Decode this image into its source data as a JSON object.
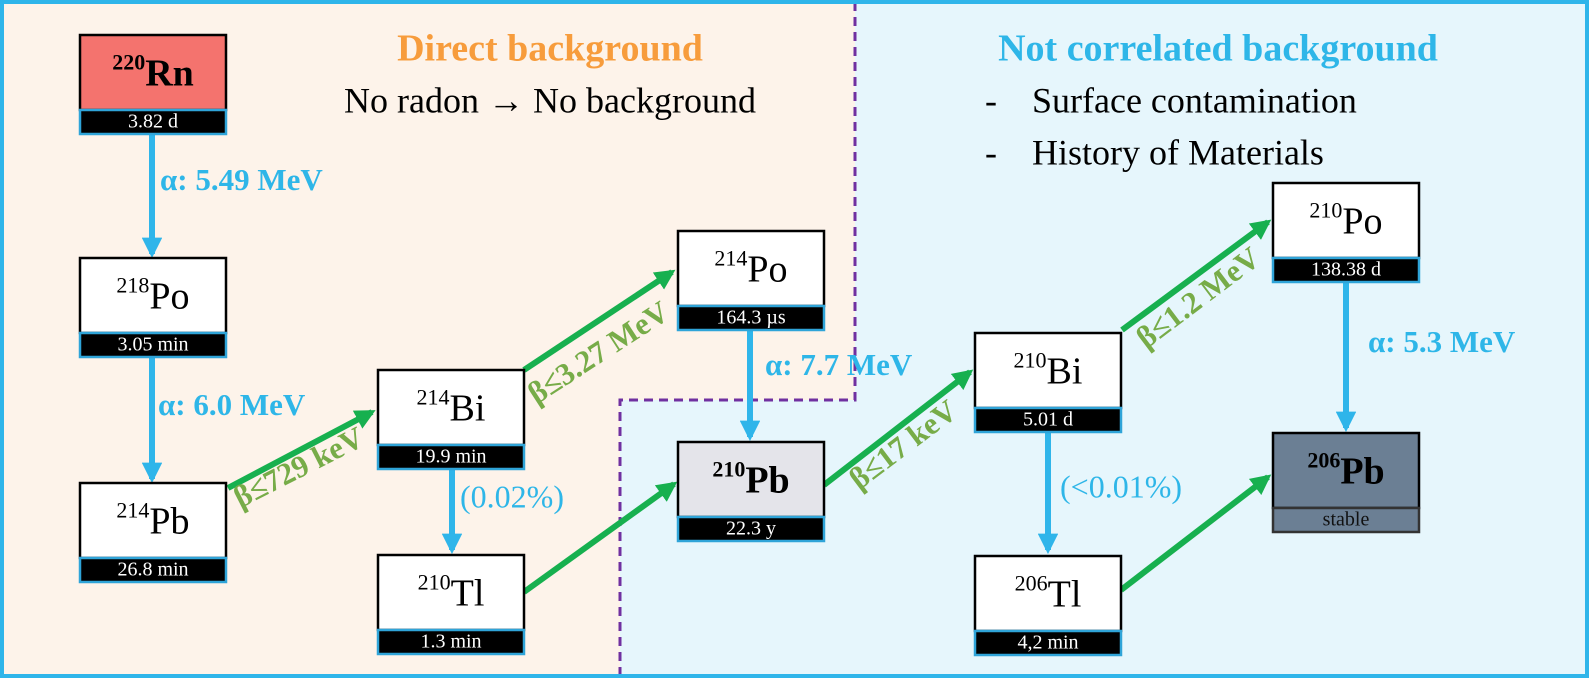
{
  "header": {
    "left_title": "Direct background",
    "left_subtitle": "No radon → No background",
    "right_title": "Not correlated background",
    "right_bullets": [
      {
        "marker": "-",
        "text": "Surface contamination"
      },
      {
        "marker": "-",
        "text": "History of Materials"
      }
    ]
  },
  "nodes": [
    {
      "mass": "220",
      "symbol": "Rn",
      "half_life": "3.82 d"
    },
    {
      "mass": "218",
      "symbol": "Po",
      "half_life": "3.05 min"
    },
    {
      "mass": "214",
      "symbol": "Pb",
      "half_life": "26.8 min"
    },
    {
      "mass": "214",
      "symbol": "Bi",
      "half_life": "19.9 min"
    },
    {
      "mass": "210",
      "symbol": "Tl",
      "half_life": "1.3 min"
    },
    {
      "mass": "214",
      "symbol": "Po",
      "half_life": "164.3 µs"
    },
    {
      "mass": "210",
      "symbol": "Pb",
      "half_life": "22.3 y"
    },
    {
      "mass": "210",
      "symbol": "Bi",
      "half_life": "5.01 d"
    },
    {
      "mass": "206",
      "symbol": "Tl",
      "half_life": "4,2 min"
    },
    {
      "mass": "210",
      "symbol": "Po",
      "half_life": "138.38 d"
    },
    {
      "mass": "206",
      "symbol": "Pb",
      "half_life": "stable"
    }
  ],
  "transitions": [
    {
      "label": "α: 5.49 MeV"
    },
    {
      "label": "α: 6.0 MeV"
    },
    {
      "label": "β≤729 keV"
    },
    {
      "label": "β≤3.27 MeV"
    },
    {
      "label": "(0.02%)"
    },
    {
      "label": "α: 7.7 MeV"
    },
    {},
    {
      "label": "β≤17 keV"
    },
    {
      "label": "β≤1.2 MeV"
    },
    {
      "label": "(<0.01%)"
    },
    {
      "label": "α: 5.3 MeV"
    },
    {}
  ]
}
